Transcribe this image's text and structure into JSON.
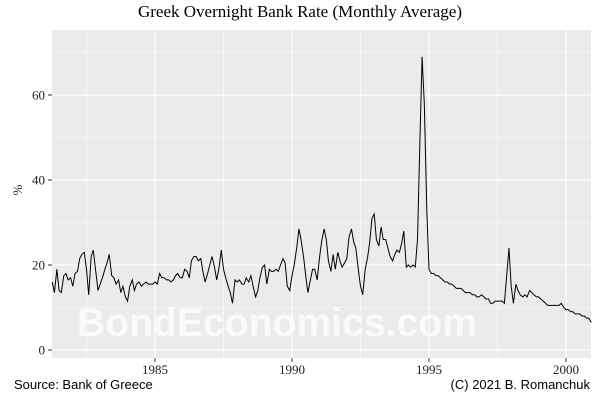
{
  "title": "Greek Overnight Bank Rate (Monthly Average)",
  "caption_left": "Source: Bank of Greece",
  "caption_right": "(C) 2021 B. Romanchuk",
  "watermark": "BondEconomics.com",
  "colors": {
    "panel": "#ebebeb",
    "grid": "#ffffff",
    "line": "#000000"
  },
  "chart_data": {
    "type": "line",
    "title": "Greek Overnight Bank Rate (Monthly Average)",
    "xlabel": "",
    "ylabel": "%",
    "xlim": [
      1981.2,
      2000.95
    ],
    "ylim": [
      0,
      72
    ],
    "x_ticks": [
      1985,
      1990,
      1995,
      2000
    ],
    "y_ticks": [
      0,
      20,
      40,
      60
    ],
    "grid": true,
    "legend": "none",
    "series": [
      {
        "name": "Greek Overnight Bank Rate",
        "points": [
          [
            1981.25,
            16
          ],
          [
            1981.33,
            13.5
          ],
          [
            1981.42,
            19
          ],
          [
            1981.5,
            14
          ],
          [
            1981.58,
            13.5
          ],
          [
            1981.67,
            17.5
          ],
          [
            1981.75,
            18
          ],
          [
            1981.83,
            16.5
          ],
          [
            1981.92,
            17
          ],
          [
            1982.0,
            15
          ],
          [
            1982.08,
            18
          ],
          [
            1982.17,
            18.5
          ],
          [
            1982.25,
            21.5
          ],
          [
            1982.33,
            22.5
          ],
          [
            1982.42,
            23
          ],
          [
            1982.5,
            19
          ],
          [
            1982.58,
            13
          ],
          [
            1982.67,
            22
          ],
          [
            1982.75,
            23.5
          ],
          [
            1982.83,
            19
          ],
          [
            1982.92,
            14
          ],
          [
            1983.0,
            15.5
          ],
          [
            1983.08,
            17
          ],
          [
            1983.17,
            19
          ],
          [
            1983.25,
            20.5
          ],
          [
            1983.33,
            22.5
          ],
          [
            1983.42,
            17.5
          ],
          [
            1983.5,
            17
          ],
          [
            1983.58,
            15.5
          ],
          [
            1983.67,
            16.5
          ],
          [
            1983.75,
            13.5
          ],
          [
            1983.83,
            15
          ],
          [
            1983.92,
            12.5
          ],
          [
            1984.0,
            11.5
          ],
          [
            1984.08,
            15
          ],
          [
            1984.17,
            16.5
          ],
          [
            1984.25,
            14
          ],
          [
            1984.33,
            15.5
          ],
          [
            1984.42,
            16
          ],
          [
            1984.5,
            15
          ],
          [
            1984.58,
            15.5
          ],
          [
            1984.67,
            16
          ],
          [
            1984.75,
            15.5
          ],
          [
            1984.83,
            15.5
          ],
          [
            1984.92,
            15.5
          ],
          [
            1985.0,
            16
          ],
          [
            1985.08,
            15.5
          ],
          [
            1985.17,
            18
          ],
          [
            1985.25,
            17
          ],
          [
            1985.33,
            17
          ],
          [
            1985.42,
            16.5
          ],
          [
            1985.5,
            16.5
          ],
          [
            1985.58,
            16
          ],
          [
            1985.67,
            16.5
          ],
          [
            1985.75,
            17.5
          ],
          [
            1985.83,
            18
          ],
          [
            1985.92,
            17
          ],
          [
            1986.0,
            17
          ],
          [
            1986.08,
            19
          ],
          [
            1986.17,
            18.5
          ],
          [
            1986.25,
            17
          ],
          [
            1986.33,
            21
          ],
          [
            1986.42,
            22
          ],
          [
            1986.5,
            22
          ],
          [
            1986.58,
            21
          ],
          [
            1986.67,
            21.5
          ],
          [
            1986.75,
            18.5
          ],
          [
            1986.83,
            16
          ],
          [
            1986.92,
            18
          ],
          [
            1987.0,
            20
          ],
          [
            1987.08,
            22
          ],
          [
            1987.17,
            19.5
          ],
          [
            1987.25,
            16.5
          ],
          [
            1987.33,
            19
          ],
          [
            1987.42,
            23.5
          ],
          [
            1987.5,
            19
          ],
          [
            1987.58,
            17
          ],
          [
            1987.67,
            15
          ],
          [
            1987.75,
            13.5
          ],
          [
            1987.83,
            11
          ],
          [
            1987.92,
            16.5
          ],
          [
            1988.0,
            16
          ],
          [
            1988.08,
            16.5
          ],
          [
            1988.17,
            15.5
          ],
          [
            1988.25,
            15.5
          ],
          [
            1988.33,
            17
          ],
          [
            1988.42,
            16
          ],
          [
            1988.5,
            17.5
          ],
          [
            1988.58,
            15
          ],
          [
            1988.67,
            12.5
          ],
          [
            1988.75,
            14
          ],
          [
            1988.83,
            17
          ],
          [
            1988.92,
            19.5
          ],
          [
            1989.0,
            20
          ],
          [
            1989.08,
            15.5
          ],
          [
            1989.17,
            19
          ],
          [
            1989.25,
            18.5
          ],
          [
            1989.33,
            18.5
          ],
          [
            1989.42,
            19
          ],
          [
            1989.5,
            18.5
          ],
          [
            1989.58,
            20
          ],
          [
            1989.67,
            21.5
          ],
          [
            1989.75,
            20.5
          ],
          [
            1989.83,
            15
          ],
          [
            1989.92,
            14
          ],
          [
            1990.0,
            17.5
          ],
          [
            1990.08,
            20
          ],
          [
            1990.17,
            24
          ],
          [
            1990.25,
            28.5
          ],
          [
            1990.33,
            26
          ],
          [
            1990.42,
            22
          ],
          [
            1990.5,
            17.5
          ],
          [
            1990.58,
            13.5
          ],
          [
            1990.67,
            16.5
          ],
          [
            1990.75,
            19
          ],
          [
            1990.83,
            19
          ],
          [
            1990.92,
            16.5
          ],
          [
            1991.0,
            21.5
          ],
          [
            1991.08,
            25.5
          ],
          [
            1991.17,
            28.5
          ],
          [
            1991.25,
            26
          ],
          [
            1991.33,
            21
          ],
          [
            1991.42,
            18.5
          ],
          [
            1991.5,
            22.5
          ],
          [
            1991.58,
            19
          ],
          [
            1991.67,
            23
          ],
          [
            1991.75,
            21
          ],
          [
            1991.83,
            19.5
          ],
          [
            1991.92,
            20.5
          ],
          [
            1992.0,
            21.5
          ],
          [
            1992.08,
            26.5
          ],
          [
            1992.17,
            28.5
          ],
          [
            1992.25,
            25.5
          ],
          [
            1992.33,
            24
          ],
          [
            1992.42,
            19
          ],
          [
            1992.5,
            15
          ],
          [
            1992.58,
            13
          ],
          [
            1992.67,
            19
          ],
          [
            1992.75,
            21.5
          ],
          [
            1992.83,
            25
          ],
          [
            1992.92,
            31
          ],
          [
            1993.0,
            32
          ],
          [
            1993.08,
            26
          ],
          [
            1993.17,
            24.5
          ],
          [
            1993.25,
            29
          ],
          [
            1993.33,
            26
          ],
          [
            1993.42,
            26
          ],
          [
            1993.5,
            24
          ],
          [
            1993.58,
            22
          ],
          [
            1993.67,
            21
          ],
          [
            1993.75,
            22.5
          ],
          [
            1993.83,
            23.5
          ],
          [
            1993.92,
            23
          ],
          [
            1994.0,
            25
          ],
          [
            1994.08,
            28
          ],
          [
            1994.17,
            19.5
          ],
          [
            1994.25,
            20
          ],
          [
            1994.33,
            19.5
          ],
          [
            1994.42,
            20
          ],
          [
            1994.5,
            19.5
          ],
          [
            1994.58,
            26
          ],
          [
            1994.67,
            50
          ],
          [
            1994.75,
            69
          ],
          [
            1994.83,
            58
          ],
          [
            1994.92,
            33
          ],
          [
            1995.0,
            19
          ],
          [
            1995.08,
            18
          ],
          [
            1995.17,
            18
          ],
          [
            1995.25,
            17.5
          ],
          [
            1995.33,
            17.5
          ],
          [
            1995.42,
            17
          ],
          [
            1995.5,
            16.5
          ],
          [
            1995.58,
            16
          ],
          [
            1995.67,
            16
          ],
          [
            1995.75,
            15.5
          ],
          [
            1995.83,
            15.5
          ],
          [
            1995.92,
            15
          ],
          [
            1996.0,
            14.5
          ],
          [
            1996.08,
            14.5
          ],
          [
            1996.17,
            14.5
          ],
          [
            1996.25,
            14
          ],
          [
            1996.33,
            13.5
          ],
          [
            1996.42,
            13.5
          ],
          [
            1996.5,
            13.5
          ],
          [
            1996.58,
            13
          ],
          [
            1996.67,
            13
          ],
          [
            1996.75,
            12.5
          ],
          [
            1996.83,
            12.5
          ],
          [
            1996.92,
            13
          ],
          [
            1997.0,
            12.5
          ],
          [
            1997.08,
            12
          ],
          [
            1997.17,
            12
          ],
          [
            1997.25,
            11
          ],
          [
            1997.33,
            11
          ],
          [
            1997.42,
            11.5
          ],
          [
            1997.5,
            11.5
          ],
          [
            1997.58,
            11.5
          ],
          [
            1997.67,
            11.5
          ],
          [
            1997.75,
            11
          ],
          [
            1997.83,
            17
          ],
          [
            1997.92,
            24
          ],
          [
            1998.0,
            15
          ],
          [
            1998.08,
            11
          ],
          [
            1998.17,
            15.5
          ],
          [
            1998.25,
            14
          ],
          [
            1998.33,
            13
          ],
          [
            1998.42,
            12.5
          ],
          [
            1998.5,
            13
          ],
          [
            1998.58,
            12.5
          ],
          [
            1998.67,
            14
          ],
          [
            1998.75,
            13.5
          ],
          [
            1998.83,
            13
          ],
          [
            1998.92,
            12.5
          ],
          [
            1999.0,
            12.5
          ],
          [
            1999.08,
            12
          ],
          [
            1999.17,
            11.5
          ],
          [
            1999.25,
            11
          ],
          [
            1999.33,
            10.5
          ],
          [
            1999.42,
            10.5
          ],
          [
            1999.5,
            10.5
          ],
          [
            1999.58,
            10.5
          ],
          [
            1999.67,
            10.5
          ],
          [
            1999.75,
            10.5
          ],
          [
            1999.83,
            11
          ],
          [
            1999.92,
            10
          ],
          [
            2000.0,
            9.5
          ],
          [
            2000.08,
            9.5
          ],
          [
            2000.17,
            9
          ],
          [
            2000.25,
            9
          ],
          [
            2000.33,
            8.5
          ],
          [
            2000.42,
            8.5
          ],
          [
            2000.5,
            8.5
          ],
          [
            2000.58,
            8
          ],
          [
            2000.67,
            8
          ],
          [
            2000.75,
            7.5
          ],
          [
            2000.83,
            7.5
          ],
          [
            2000.92,
            6.5
          ]
        ]
      }
    ],
    "annotations": [
      "BondEconomics.com (watermark)"
    ],
    "captions": [
      "Source: Bank of Greece",
      "(C) 2021 B. Romanchuk"
    ]
  }
}
